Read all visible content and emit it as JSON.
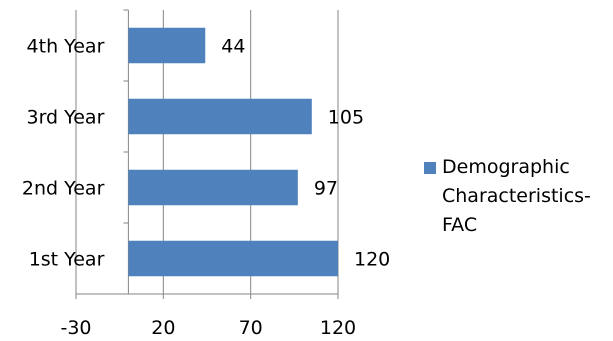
{
  "chart_data": {
    "type": "bar",
    "orientation": "horizontal",
    "categories": [
      "1st Year",
      "2nd Year",
      "3rd Year",
      "4th Year"
    ],
    "series": [
      {
        "name": "Demographic Characteristics-FAC",
        "values": [
          120,
          97,
          105,
          44
        ]
      }
    ],
    "xlim": [
      -30,
      120
    ],
    "xticks": [
      -30,
      20,
      70,
      120
    ],
    "grid": "vertical",
    "legend": "right",
    "data_labels": true,
    "bar_color": "#4f81bd",
    "gridline_color": "#868686"
  }
}
